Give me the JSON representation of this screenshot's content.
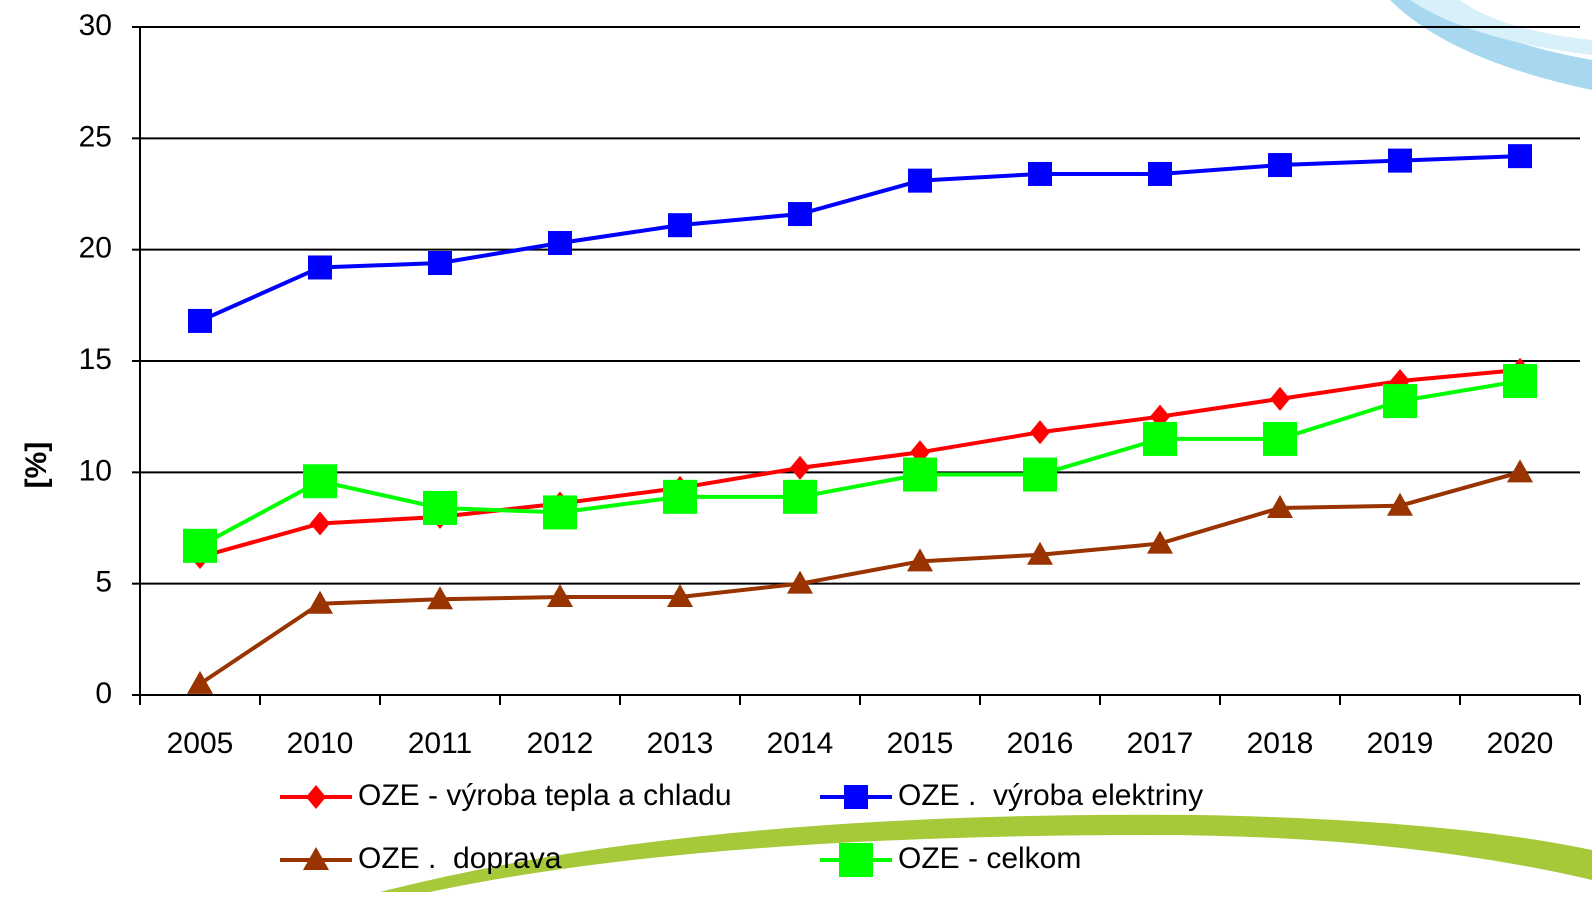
{
  "chart_data": {
    "type": "line",
    "y_label": "[%]",
    "categories": [
      "2005",
      "2010",
      "2011",
      "2012",
      "2013",
      "2014",
      "2015",
      "2016",
      "2017",
      "2018",
      "2019",
      "2020"
    ],
    "series": [
      {
        "name": "OZE - výroba tepla a chladu",
        "color": "#ff0000",
        "marker": "diamond",
        "values": [
          6.2,
          7.7,
          8.0,
          8.6,
          9.3,
          10.2,
          10.9,
          11.8,
          12.5,
          13.3,
          14.1,
          14.6
        ]
      },
      {
        "name": "OZE .  výroba elektriny",
        "color": "#0000ff",
        "marker": "square",
        "values": [
          16.8,
          19.2,
          19.4,
          20.3,
          21.1,
          21.6,
          23.1,
          23.4,
          23.4,
          23.8,
          24.0,
          24.2
        ]
      },
      {
        "name": "OZE .  doprava",
        "color": "#993300",
        "marker": "triangle",
        "values": [
          0.5,
          4.1,
          4.3,
          4.4,
          4.4,
          5.0,
          6.0,
          6.3,
          6.8,
          8.4,
          8.5,
          10.0
        ]
      },
      {
        "name": "OZE - celkom",
        "color": "#00ff00",
        "marker": "bigsquare",
        "values": [
          6.7,
          9.6,
          8.4,
          8.2,
          8.9,
          8.9,
          9.9,
          9.9,
          11.5,
          11.5,
          13.2,
          14.1
        ]
      }
    ],
    "ylim": [
      0,
      30
    ],
    "yticks": [
      0,
      5,
      10,
      15,
      20,
      25,
      30
    ],
    "grid": true
  }
}
